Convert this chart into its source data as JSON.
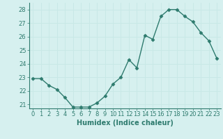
{
  "x": [
    0,
    1,
    2,
    3,
    4,
    5,
    6,
    7,
    8,
    9,
    10,
    11,
    12,
    13,
    14,
    15,
    16,
    17,
    18,
    19,
    20,
    21,
    22,
    23
  ],
  "y": [
    22.9,
    22.9,
    22.4,
    22.1,
    21.5,
    20.8,
    20.8,
    20.8,
    21.1,
    21.6,
    22.5,
    23.0,
    24.3,
    23.7,
    26.1,
    25.8,
    27.5,
    28.0,
    28.0,
    27.5,
    27.1,
    26.3,
    25.7,
    24.4
  ],
  "line_color": "#2e7b6e",
  "marker": "D",
  "marker_size": 2.5,
  "bg_color": "#d6f0ef",
  "grid_color": "#c8e8e6",
  "xlabel": "Humidex (Indice chaleur)",
  "xlim": [
    -0.5,
    23.5
  ],
  "ylim": [
    20.7,
    28.5
  ],
  "yticks": [
    21,
    22,
    23,
    24,
    25,
    26,
    27,
    28
  ],
  "xticks": [
    0,
    1,
    2,
    3,
    4,
    5,
    6,
    7,
    8,
    9,
    10,
    11,
    12,
    13,
    14,
    15,
    16,
    17,
    18,
    19,
    20,
    21,
    22,
    23
  ],
  "label_fontsize": 7,
  "tick_fontsize": 6
}
